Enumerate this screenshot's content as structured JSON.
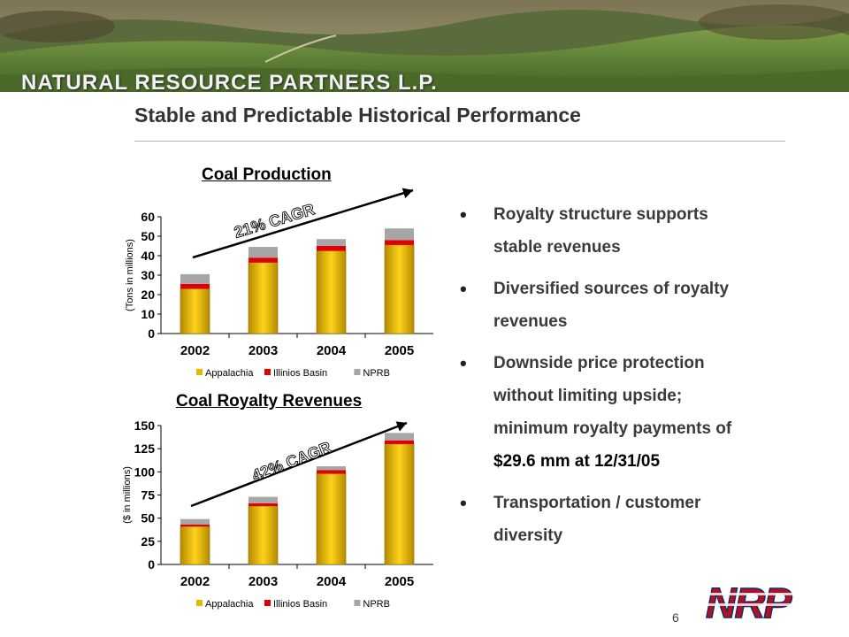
{
  "banner": {
    "company": "NATURAL RESOURCE PARTNERS L.P."
  },
  "title": "Stable and Predictable Historical Performance",
  "bullets": [
    {
      "lines": [
        "Royalty structure supports",
        "stable revenues"
      ]
    },
    {
      "lines": [
        "Diversified sources of royalty",
        "revenues"
      ]
    },
    {
      "lines": [
        "Downside price protection",
        "without limiting upside;",
        "minimum royalty payments of",
        "$29.6 mm at 12/31/05"
      ]
    },
    {
      "lines": [
        "Transportation / customer",
        "diversity"
      ]
    }
  ],
  "page_number": "6",
  "logo_text": "NRP",
  "colors": {
    "appalachia": "#e8b800",
    "illinois_basin": "#e00000",
    "nprb": "#a6a6a6"
  },
  "chart_data": [
    {
      "type": "bar",
      "stacked": true,
      "title": "Coal Production",
      "ylabel": "(Tons in millions)",
      "categories": [
        "2002",
        "2003",
        "2004",
        "2005"
      ],
      "yticks": [
        "0",
        "10",
        "20",
        "30",
        "40",
        "50",
        "60"
      ],
      "ylim": [
        0,
        60
      ],
      "series": [
        {
          "name": "Appalachia",
          "values": [
            23,
            36.5,
            42.5,
            45.5
          ]
        },
        {
          "name": "Illinios Basin",
          "values": [
            2.5,
            2.5,
            2.5,
            2.5
          ]
        },
        {
          "name": "NPRB",
          "values": [
            5,
            5.5,
            3.5,
            6
          ]
        }
      ],
      "annotation": "21% CAGR",
      "legend_position": "bottom"
    },
    {
      "type": "bar",
      "stacked": true,
      "title": "Coal Royalty Revenues",
      "ylabel": "($ in millions)",
      "categories": [
        "2002",
        "2003",
        "2004",
        "2005"
      ],
      "yticks": [
        "0",
        "25",
        "50",
        "75",
        "100",
        "125",
        "150"
      ],
      "ylim": [
        0,
        150
      ],
      "series": [
        {
          "name": "Appalachia",
          "values": [
            41,
            63,
            98,
            130
          ]
        },
        {
          "name": "Illinios Basin",
          "values": [
            2,
            3,
            4,
            4
          ]
        },
        {
          "name": "NPRB",
          "values": [
            6,
            7,
            4,
            8
          ]
        }
      ],
      "annotation": "42% CAGR",
      "legend_position": "bottom"
    }
  ]
}
